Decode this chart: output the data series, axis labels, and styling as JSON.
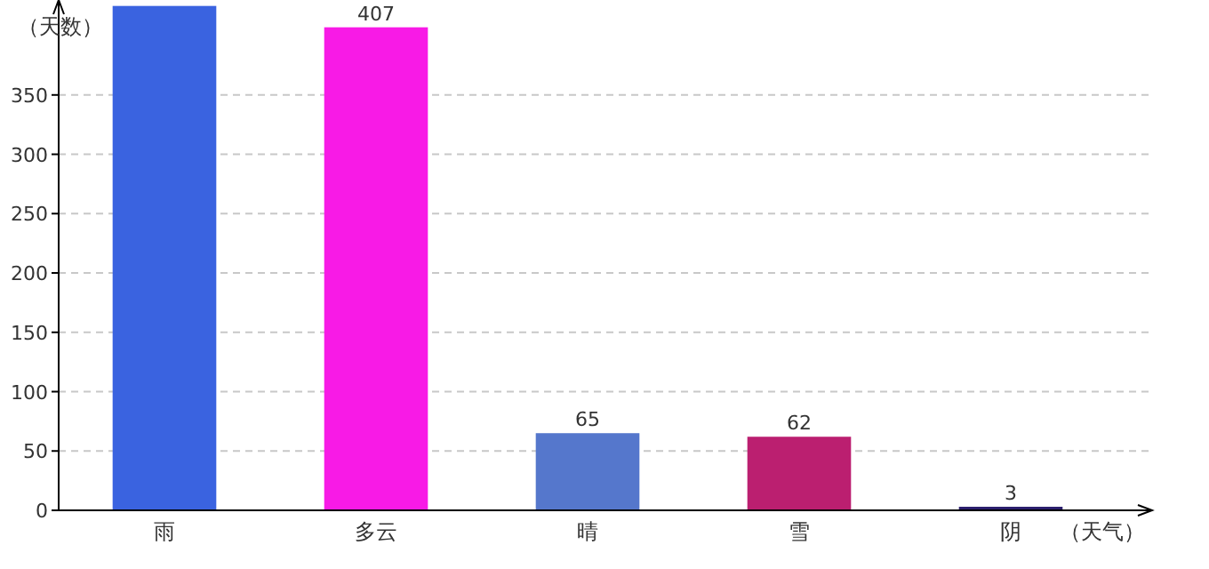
{
  "chart_data": {
    "type": "bar",
    "xlabel": "（天气）",
    "ylabel": "（天数）",
    "categories": [
      "雨",
      "多云",
      "晴",
      "雪",
      "阴"
    ],
    "values": [
      425,
      407,
      65,
      62,
      3
    ],
    "colors": [
      "#3a63e0",
      "#f81ae6",
      "#5577cc",
      "#bb1f70",
      "#2b1f6e"
    ],
    "value_labels": [
      null,
      "407",
      "65",
      "62",
      "3"
    ],
    "ylim": [
      0,
      430
    ],
    "yticks": [
      0,
      50,
      100,
      150,
      200,
      250,
      300,
      350
    ],
    "grid": "y"
  }
}
